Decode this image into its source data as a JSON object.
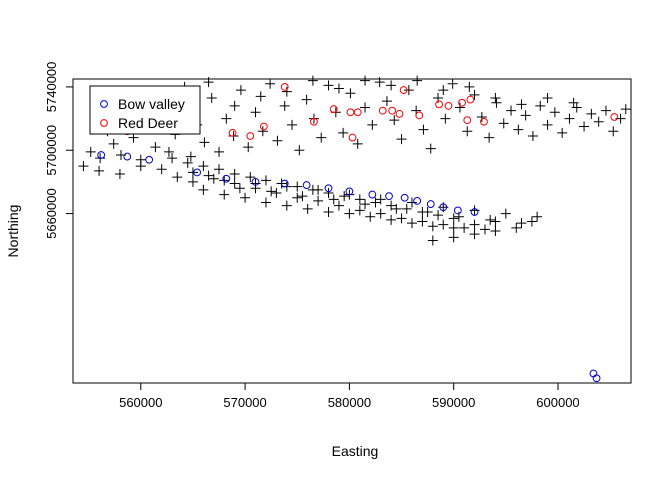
{
  "chart_data": {
    "type": "scatter",
    "title": "",
    "xlabel": "Easting",
    "ylabel": "Northing",
    "xlim": [
      553500,
      607000
    ],
    "ylim": [
      5553000,
      5745000
    ],
    "x_ticks": [
      560000,
      570000,
      580000,
      590000,
      600000
    ],
    "x_tick_labels": [
      "560000",
      "570000",
      "580000",
      "590000",
      "600000"
    ],
    "y_ticks": [
      5660000,
      5700000,
      5740000
    ],
    "y_tick_labels": [
      "5660000",
      "5700000",
      "5740000"
    ],
    "grid": false,
    "legend_position": "top-left",
    "series": [
      {
        "name": "",
        "marker": "plus",
        "color": "#000000",
        "points": [
          [
            555200,
            5699000
          ],
          [
            556100,
            5695000
          ],
          [
            556800,
            5712000
          ],
          [
            557400,
            5704000
          ],
          [
            558100,
            5697000
          ],
          [
            558700,
            5719000
          ],
          [
            559300,
            5708000
          ],
          [
            560000,
            5694000
          ],
          [
            560800,
            5715000
          ],
          [
            561400,
            5702000
          ],
          [
            562100,
            5722000
          ],
          [
            562700,
            5699000
          ],
          [
            563300,
            5710000
          ],
          [
            564000,
            5727000
          ],
          [
            564800,
            5696000
          ],
          [
            565400,
            5716000
          ],
          [
            566100,
            5705000
          ],
          [
            566800,
            5733000
          ],
          [
            567500,
            5699000
          ],
          [
            568200,
            5720000
          ],
          [
            568900,
            5709000
          ],
          [
            569600,
            5738000
          ],
          [
            570300,
            5702000
          ],
          [
            571000,
            5724000
          ],
          [
            571700,
            5712000
          ],
          [
            572400,
            5742000
          ],
          [
            573100,
            5706000
          ],
          [
            573800,
            5728000
          ],
          [
            574500,
            5716000
          ],
          [
            575200,
            5700000
          ],
          [
            575900,
            5732000
          ],
          [
            576600,
            5720000
          ],
          [
            577300,
            5708000
          ],
          [
            578000,
            5741000
          ],
          [
            578700,
            5724000
          ],
          [
            579400,
            5711000
          ],
          [
            580100,
            5736000
          ],
          [
            580800,
            5704000
          ],
          [
            581500,
            5727000
          ],
          [
            582200,
            5716000
          ],
          [
            582900,
            5743000
          ],
          [
            583600,
            5731000
          ],
          [
            584300,
            5719000
          ],
          [
            585000,
            5707000
          ],
          [
            585700,
            5738000
          ],
          [
            586400,
            5725000
          ],
          [
            587100,
            5713000
          ],
          [
            587800,
            5701000
          ],
          [
            588500,
            5733000
          ],
          [
            589200,
            5720000
          ],
          [
            589900,
            5742000
          ],
          [
            590600,
            5727000
          ],
          [
            591300,
            5712000
          ],
          [
            592000,
            5735000
          ],
          [
            592700,
            5721000
          ],
          [
            593400,
            5708000
          ],
          [
            594100,
            5730000
          ],
          [
            594800,
            5717000
          ],
          [
            595500,
            5725000
          ],
          [
            596200,
            5713000
          ],
          [
            596900,
            5722000
          ],
          [
            597600,
            5709000
          ],
          [
            598300,
            5728000
          ],
          [
            599000,
            5716000
          ],
          [
            599700,
            5724000
          ],
          [
            600400,
            5711000
          ],
          [
            601100,
            5720000
          ],
          [
            601800,
            5727000
          ],
          [
            602500,
            5715000
          ],
          [
            603200,
            5723000
          ],
          [
            603900,
            5718000
          ],
          [
            604600,
            5725000
          ],
          [
            605300,
            5712000
          ],
          [
            606000,
            5720000
          ],
          [
            606500,
            5726000
          ],
          [
            557000,
            5725000
          ],
          [
            559500,
            5728000
          ],
          [
            561800,
            5733000
          ],
          [
            564200,
            5740000
          ],
          [
            566500,
            5743000
          ],
          [
            569000,
            5728000
          ],
          [
            571500,
            5734000
          ],
          [
            574000,
            5737000
          ],
          [
            576500,
            5744000
          ],
          [
            579000,
            5739000
          ],
          [
            581500,
            5744000
          ],
          [
            584000,
            5741000
          ],
          [
            586500,
            5744000
          ],
          [
            589000,
            5738000
          ],
          [
            591500,
            5740000
          ],
          [
            594000,
            5733000
          ],
          [
            596500,
            5729000
          ],
          [
            599000,
            5733000
          ],
          [
            601500,
            5730000
          ],
          [
            554500,
            5690000
          ],
          [
            556000,
            5687000
          ],
          [
            558000,
            5685000
          ],
          [
            560000,
            5690000
          ],
          [
            562000,
            5688000
          ],
          [
            563500,
            5683000
          ],
          [
            565000,
            5680000
          ],
          [
            566500,
            5684000
          ],
          [
            568000,
            5681000
          ],
          [
            569500,
            5676000
          ],
          [
            571000,
            5679000
          ],
          [
            572500,
            5674000
          ],
          [
            574000,
            5677000
          ],
          [
            575500,
            5671000
          ],
          [
            577000,
            5675000
          ],
          [
            578500,
            5669000
          ],
          [
            580000,
            5672000
          ],
          [
            581500,
            5666000
          ],
          [
            583000,
            5669000
          ],
          [
            584500,
            5663000
          ],
          [
            586000,
            5667000
          ],
          [
            587500,
            5661000
          ],
          [
            589000,
            5664000
          ],
          [
            590500,
            5658000
          ],
          [
            592000,
            5662000
          ],
          [
            593500,
            5656000
          ],
          [
            595000,
            5660000
          ],
          [
            596500,
            5654000
          ],
          [
            598000,
            5658000
          ],
          [
            563000,
            5695000
          ],
          [
            564500,
            5692000
          ],
          [
            566000,
            5690000
          ],
          [
            567500,
            5688000
          ],
          [
            569000,
            5685000
          ],
          [
            570500,
            5683000
          ],
          [
            572000,
            5681000
          ],
          [
            573500,
            5679000
          ],
          [
            575000,
            5677000
          ],
          [
            576500,
            5675000
          ],
          [
            578000,
            5673000
          ],
          [
            579500,
            5671000
          ],
          [
            581000,
            5669000
          ],
          [
            582500,
            5667000
          ],
          [
            584000,
            5665000
          ],
          [
            585500,
            5663000
          ],
          [
            587000,
            5661000
          ],
          [
            588500,
            5659000
          ],
          [
            590000,
            5657000
          ],
          [
            565000,
            5686000
          ],
          [
            567000,
            5682000
          ],
          [
            569000,
            5679000
          ],
          [
            571000,
            5676000
          ],
          [
            573000,
            5673000
          ],
          [
            575000,
            5670000
          ],
          [
            577000,
            5668000
          ],
          [
            579000,
            5665000
          ],
          [
            581000,
            5662000
          ],
          [
            583000,
            5660000
          ],
          [
            585000,
            5657000
          ],
          [
            587000,
            5655000
          ],
          [
            589000,
            5653000
          ],
          [
            591000,
            5651000
          ],
          [
            593000,
            5650000
          ],
          [
            566000,
            5675000
          ],
          [
            568000,
            5672000
          ],
          [
            570000,
            5670000
          ],
          [
            572000,
            5667000
          ],
          [
            574000,
            5665000
          ],
          [
            576000,
            5663000
          ],
          [
            578000,
            5661000
          ],
          [
            580000,
            5660000
          ],
          [
            582000,
            5658000
          ],
          [
            584000,
            5656000
          ],
          [
            586000,
            5654000
          ],
          [
            588000,
            5652000
          ],
          [
            590000,
            5651000
          ],
          [
            592000,
            5653000
          ],
          [
            594000,
            5655000
          ],
          [
            588000,
            5643000
          ],
          [
            590000,
            5645000
          ],
          [
            592000,
            5647000
          ],
          [
            594000,
            5649000
          ],
          [
            596000,
            5651000
          ],
          [
            597500,
            5655000
          ]
        ]
      },
      {
        "name": "Bow valley",
        "marker": "circle",
        "color": "#0000CD",
        "points": [
          [
            556200,
            5697000
          ],
          [
            558700,
            5696000
          ],
          [
            560800,
            5694000
          ],
          [
            565400,
            5686000
          ],
          [
            568200,
            5682000
          ],
          [
            571000,
            5680000
          ],
          [
            573800,
            5679000
          ],
          [
            575900,
            5678000
          ],
          [
            578000,
            5676000
          ],
          [
            580000,
            5674000
          ],
          [
            582200,
            5672000
          ],
          [
            583800,
            5671000
          ],
          [
            585300,
            5670000
          ],
          [
            586500,
            5668000
          ],
          [
            587800,
            5666000
          ],
          [
            589000,
            5664000
          ],
          [
            590400,
            5662000
          ],
          [
            592000,
            5661000
          ],
          [
            603400,
            5559000
          ],
          [
            603700,
            5556000
          ]
        ]
      },
      {
        "name": "Red Deer",
        "marker": "circle",
        "color": "#FF0000",
        "points": [
          [
            558300,
            5718000
          ],
          [
            558900,
            5719000
          ],
          [
            558700,
            5712000
          ],
          [
            568800,
            5711000
          ],
          [
            570500,
            5709000
          ],
          [
            571800,
            5715000
          ],
          [
            573800,
            5740000
          ],
          [
            576600,
            5718000
          ],
          [
            578500,
            5726000
          ],
          [
            580100,
            5724000
          ],
          [
            580800,
            5724000
          ],
          [
            583200,
            5725000
          ],
          [
            584100,
            5725000
          ],
          [
            584800,
            5723000
          ],
          [
            585200,
            5738000
          ],
          [
            586700,
            5722000
          ],
          [
            588600,
            5729000
          ],
          [
            589500,
            5728000
          ],
          [
            590800,
            5730000
          ],
          [
            591300,
            5719000
          ],
          [
            591600,
            5732000
          ],
          [
            592900,
            5718000
          ],
          [
            580300,
            5708000
          ],
          [
            605400,
            5721000
          ]
        ]
      }
    ]
  }
}
